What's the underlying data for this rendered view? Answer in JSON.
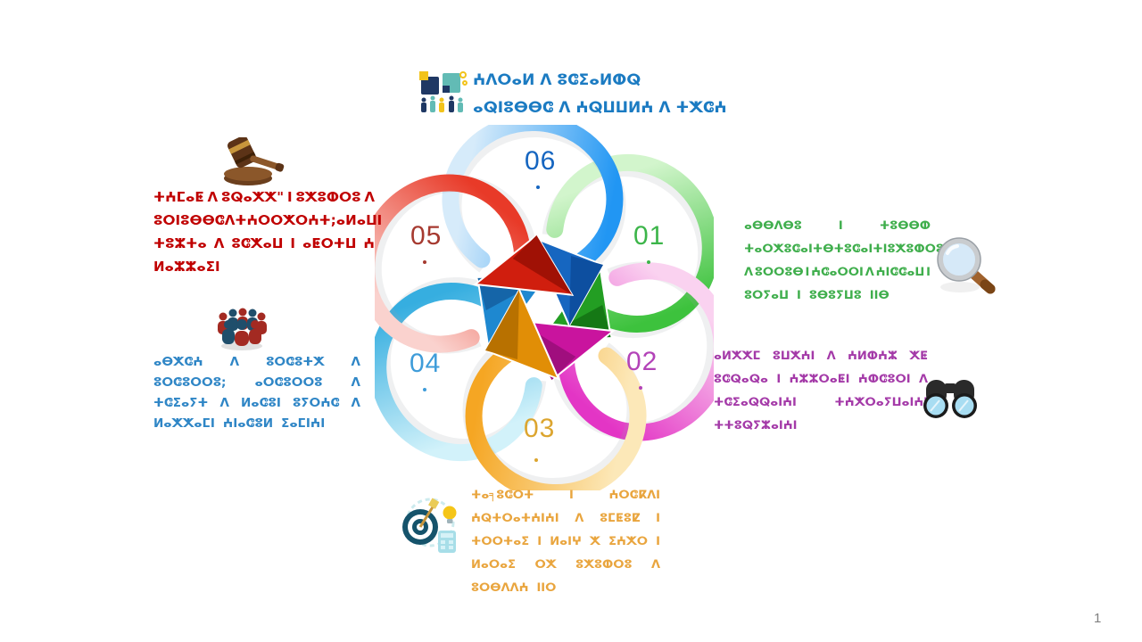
{
  "page": {
    "number": "1",
    "background": "#ffffff"
  },
  "title_icon": "teamwork-puzzle-icon",
  "icons": {
    "top": "teamwork-puzzle-icon",
    "step05": "gavel-icon",
    "step01": "magnifier-icon",
    "step02": "binoculars-icon",
    "step04": "people-group-icon",
    "step03": "target-idea-icon"
  },
  "numbers": {
    "n06": {
      "label": "06",
      "color": "#1565C0"
    },
    "n01": {
      "label": "01",
      "color": "#3CB54A"
    },
    "n02": {
      "label": "02",
      "color": "#B343B8"
    },
    "n03": {
      "label": "03",
      "color": "#DCA52F"
    },
    "n04": {
      "label": "04",
      "color": "#3E9CD9"
    },
    "n05": {
      "label": "05",
      "color": "#A63A30"
    }
  },
  "text_blocks": {
    "title_block": {
      "color": "#1B7BC2",
      "lines": [
        {
          "align": "start",
          "words": [
            "ⵄⴷⵔⴰⵍ ⴷ ⵓⵛⵉⴰⵍⵀⵕ"
          ]
        },
        {
          "align": "start",
          "words": [
            "ⴰⵕⵏⵓⴱⴱⵛ ⴷ ⵄⵕⵡⵡⵍⵄ ⴷ ⵜⵅⵛⵄ"
          ]
        }
      ]
    },
    "red_block": {
      "color": "#C00000",
      "lines": [
        {
          "align": "between",
          "words": [
            "ⵜⵄⵎⴰⵟ",
            "ⴷ",
            "ⵓⵕⴰⵅⵅ\"",
            "ⵏ",
            "ⵓⵅⵓⵀⵔⵓ",
            "ⴷ"
          ]
        },
        {
          "align": "between",
          "words": [
            "ⵓⵔⵏⵓⴱⴱⵛ",
            "ⴷ",
            "ⵜⵄⵔⵔⵅⵔⵄⵜ",
            ";ⴰⵍⴰⵡⵏ"
          ]
        },
        {
          "align": "between",
          "words": [
            "ⵜⵓⵣⵜⴰ",
            "ⴷ",
            "ⵓⵛⵅⴰⵡ",
            "ⵏ",
            "ⴰⵟⵔⵜⵡ",
            "ⵄ"
          ]
        },
        {
          "align": "start",
          "words": [
            "ⵍⴰⵣⵣⴰⵉⵏ"
          ]
        }
      ]
    },
    "green_block": {
      "color": "#3FAE4C",
      "lines": [
        {
          "align": "between",
          "words": [
            "ⴰⴱⴱⴷⴱⵓ",
            "ⵏ",
            "ⵜⵓⴱⴱⵀ"
          ]
        },
        {
          "align": "between",
          "words": [
            "ⵜⴰⵔⵅⵓⵛⴰⵏⵜ",
            "ⴱ",
            "ⵜⵓⵛⴰⵏⵜ",
            "ⵏ",
            "ⵓⵅⵓⵀⵔⵓ"
          ]
        },
        {
          "align": "between",
          "words": [
            "ⴷ",
            "ⵓⵔⵔⵓⴱ",
            "ⵏ",
            "ⵄⵛⴰⵔⵔⵏ",
            "ⴷ",
            "ⵄⵏⵛⵛⴰⵡ",
            "ⵏ"
          ]
        },
        {
          "align": "start",
          "words": [
            "ⵓⵔⵢⴰⵡ",
            "ⵏ",
            "ⵓⴱⵓⵢⵡⵓ",
            "ⵏⵏⴱ"
          ]
        }
      ]
    },
    "magenta_block": {
      "color": "#A43AA8",
      "lines": [
        {
          "align": "between",
          "words": [
            "ⴰⵍⵅⵅⵎ",
            "ⵓⵡⵅⵄⵏ",
            "ⴷ",
            "ⵄⵍⵀⵄⵣ",
            "ⵅⵟ"
          ]
        },
        {
          "align": "between",
          "words": [
            "ⵓⵛⵕⴰⵕⴰ",
            "ⵏ",
            "ⵄⵣⵣⵔⴰⵟⵏ",
            "ⵄⵀⵛⵓⵔⵏ",
            "ⴷ"
          ]
        },
        {
          "align": "between",
          "words": [
            "ⵜⵛⵉⴰⵕⵕⴰⵏⵄⵏ",
            "ⵜⵄⵅⵔⴰⵢⵡⴰⵏⵄⵏ"
          ]
        },
        {
          "align": "start",
          "words": [
            "ⵜⵜⵓⵕⵢⵣⴰⵏⵄⵏ"
          ]
        }
      ]
    },
    "orange_block": {
      "color": "#E9A53E",
      "lines": [
        {
          "align": "between",
          "words": [
            "ⵜⴰ╕ⵓⵛⵔⵜ",
            "ⵏ",
            "ⵄⵔⵛⴽⴷⵏ"
          ]
        },
        {
          "align": "between",
          "words": [
            "ⵄⵕⵜⵔⴰⵜⵄⵏⵄⵏ",
            "ⴷ",
            "ⵓⵎⵟⵓⵇ",
            "ⵏ"
          ]
        },
        {
          "align": "between",
          "words": [
            "ⵜⵔⵔⵜⴰⵉ",
            "ⵏ",
            "ⵍⴰⵏⵖ",
            "ⵅ",
            "ⵉⵄⵅⵔ",
            "ⵏ"
          ]
        },
        {
          "align": "between",
          "words": [
            "ⵍⴰⵔⴰⵉ",
            "ⵔⵅ",
            "ⵓⵅⵓⵀⵔⵓ",
            "ⴷ"
          ]
        },
        {
          "align": "start",
          "words": [
            "ⵓⵔⴱⴷⴷⵄ",
            "ⵏⵏⵔ"
          ]
        }
      ]
    },
    "blue_block": {
      "color": "#2F86C6",
      "lines": [
        {
          "align": "between",
          "words": [
            "ⴰⴱⵅⵛⵄ",
            "ⴷ",
            "ⵓⵔⵛⵓⵜⵅ",
            "ⴷ"
          ]
        },
        {
          "align": "between",
          "words": [
            "ⵓⵔⵛⵓⵔⵔⵓ;",
            "ⴰⵔⵛⵓⵔⵔⵓ",
            "ⴷ"
          ]
        },
        {
          "align": "between",
          "words": [
            "ⵜⵛⵉⴰⵢⵜ",
            "ⴷ",
            "ⵍⴰⵛⵓⵏ",
            "ⵓⵢⵔⵄⵛ",
            "ⴷ"
          ]
        },
        {
          "align": "start",
          "words": [
            "ⵍⴰⵅⵅⴰⵎⵏ",
            "ⵄⵏⴰⵛⵓⵍ",
            "ⵉⴰⵎⵏⵄⵏ"
          ]
        }
      ]
    }
  },
  "wheel": {
    "z_order": [
      "green",
      "magenta",
      "cyan",
      "orange",
      "blue",
      "red"
    ],
    "petals": [
      {
        "id": "blue",
        "angle": 0,
        "light": "#D6EBFA",
        "main": "#2196F3",
        "head": "#1666C0",
        "shade": "#0D4FA0"
      },
      {
        "id": "green",
        "angle": 60,
        "light": "#D2F5CC",
        "main": "#3DC23D",
        "head": "#239E23",
        "shade": "#157815"
      },
      {
        "id": "magenta",
        "angle": 120,
        "light": "#FAD2F0",
        "main": "#E335C5",
        "head": "#C9149E",
        "shade": "#A00E7E"
      },
      {
        "id": "orange",
        "angle": 180,
        "light": "#FCE8B8",
        "main": "#F5A623",
        "head": "#E18E06",
        "shade": "#B87100"
      },
      {
        "id": "cyan",
        "angle": 240,
        "light": "#D2F2FA",
        "main": "#36AEE0",
        "head": "#1E88D0",
        "shade": "#1565A8"
      },
      {
        "id": "red",
        "angle": 300,
        "light": "#FAD2CE",
        "main": "#E83A28",
        "head": "#D01E0E",
        "shade": "#A01105"
      }
    ]
  }
}
